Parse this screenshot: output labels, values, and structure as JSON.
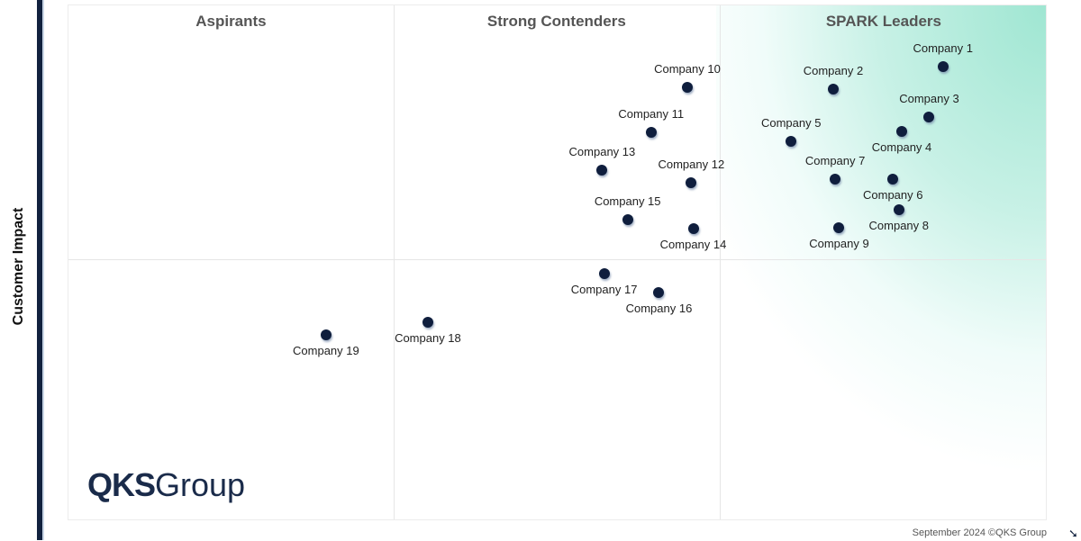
{
  "chart_data": {
    "type": "scatter",
    "title": "",
    "xlabel": "",
    "ylabel": "Customer Impact",
    "xlim": [
      0,
      100
    ],
    "ylim": [
      0,
      100
    ],
    "grid": false,
    "quadrant_dividers": {
      "x": [
        33.2,
        66.5
      ],
      "y": [
        50.8
      ]
    },
    "quadrant_titles": [
      "Aspirants",
      "Strong Contenders",
      "SPARK Leaders"
    ],
    "highlight_color": "#9fe6d2",
    "point_color": "#0f1e3d",
    "points": [
      {
        "label": "Company 1",
        "x": 89.3,
        "y": 88.1,
        "label_pos": "above"
      },
      {
        "label": "Company 2",
        "x": 78.1,
        "y": 83.8,
        "label_pos": "above"
      },
      {
        "label": "Company 3",
        "x": 87.9,
        "y": 78.4,
        "label_pos": "above"
      },
      {
        "label": "Company 4",
        "x": 85.1,
        "y": 75.6,
        "label_pos": "below"
      },
      {
        "label": "Company 5",
        "x": 73.8,
        "y": 73.6,
        "label_pos": "above"
      },
      {
        "label": "Company 6",
        "x": 84.2,
        "y": 66.3,
        "label_pos": "below"
      },
      {
        "label": "Company 7",
        "x": 78.3,
        "y": 66.3,
        "label_pos": "above"
      },
      {
        "label": "Company 8",
        "x": 84.8,
        "y": 60.4,
        "label_pos": "below"
      },
      {
        "label": "Company 9",
        "x": 78.7,
        "y": 56.9,
        "label_pos": "below"
      },
      {
        "label": "Company 10",
        "x": 63.2,
        "y": 84.1,
        "label_pos": "above"
      },
      {
        "label": "Company 11",
        "x": 59.5,
        "y": 75.4,
        "label_pos": "above"
      },
      {
        "label": "Company 12",
        "x": 63.6,
        "y": 65.6,
        "label_pos": "above"
      },
      {
        "label": "Company 13",
        "x": 54.5,
        "y": 68.1,
        "label_pos": "above"
      },
      {
        "label": "Company 14",
        "x": 63.8,
        "y": 56.7,
        "label_pos": "below"
      },
      {
        "label": "Company 15",
        "x": 57.1,
        "y": 58.5,
        "label_pos": "above"
      },
      {
        "label": "Company 16",
        "x": 60.3,
        "y": 44.3,
        "label_pos": "below"
      },
      {
        "label": "Company 17",
        "x": 54.7,
        "y": 48.0,
        "label_pos": "below"
      },
      {
        "label": "Company 18",
        "x": 36.7,
        "y": 38.5,
        "label_pos": "below"
      },
      {
        "label": "Company 19",
        "x": 26.3,
        "y": 36.1,
        "label_pos": "below"
      }
    ]
  },
  "logo": {
    "bold": "QKS",
    "regular": "Group"
  },
  "footer": "September 2024 ©QKS Group"
}
